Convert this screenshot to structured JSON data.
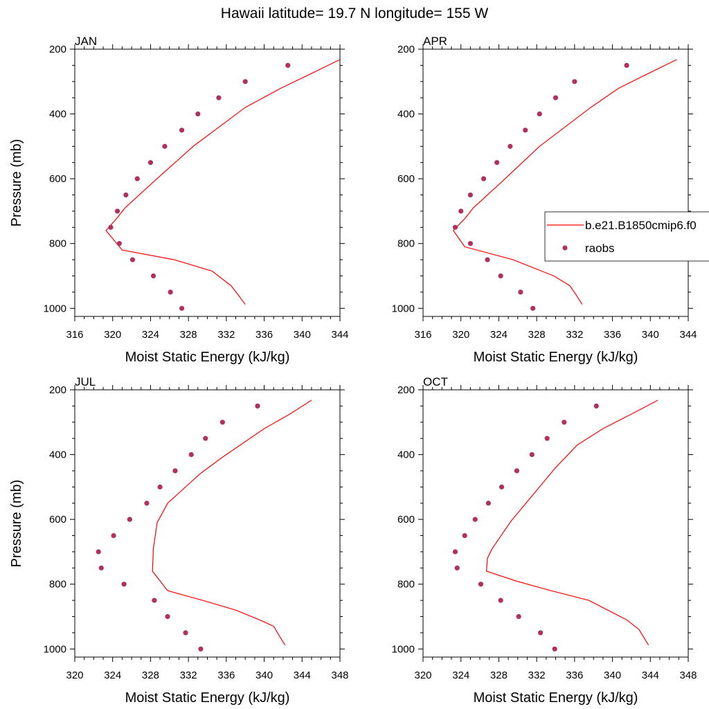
{
  "figure": {
    "title": "Hawaii  latitude= 19.7 N longitude= 155 W",
    "colors": {
      "model_line": "#ff0000",
      "raobs_marker": "#b03060",
      "axis": "#000000"
    }
  },
  "legend": {
    "entries": [
      "b.e21.B1850cmip6.f0",
      "raobs"
    ]
  },
  "chart_data": [
    {
      "type": "line+scatter",
      "panel_label": "JAN",
      "xlabel": "Moist Static Energy (kJ/kg)",
      "ylabel": "Pressure (mb)",
      "xlim": [
        316,
        344
      ],
      "ylim": [
        200,
        1025
      ],
      "y_reversed": true,
      "xticks": [
        316,
        320,
        324,
        328,
        332,
        336,
        340,
        344
      ],
      "yticks": [
        200,
        400,
        600,
        800,
        1000
      ],
      "series": [
        {
          "name": "b.e21.B1850cmip6.f0",
          "kind": "line",
          "x": [
            344.0,
            341.0,
            337.8,
            334.0,
            328.5,
            324.3,
            321.3,
            320.5,
            319.3,
            321.0,
            326.5,
            330.5,
            332.5,
            333.3,
            334.0
          ],
          "y": [
            232,
            275,
            320,
            380,
            500,
            610,
            690,
            720,
            760,
            820,
            850,
            885,
            930,
            960,
            988
          ]
        },
        {
          "name": "raobs",
          "kind": "scatter",
          "x": [
            338.5,
            334.0,
            331.2,
            329.0,
            327.3,
            325.5,
            324.0,
            322.6,
            321.4,
            320.5,
            319.8,
            320.7,
            322.1,
            324.3,
            326.1,
            327.3
          ],
          "y": [
            250,
            300,
            350,
            400,
            450,
            500,
            550,
            600,
            650,
            700,
            750,
            800,
            850,
            900,
            950,
            1000
          ]
        }
      ]
    },
    {
      "type": "line+scatter",
      "panel_label": "APR",
      "xlabel": "Moist Static Energy (kJ/kg)",
      "ylabel": "",
      "xlim": [
        316,
        344
      ],
      "ylim": [
        200,
        1025
      ],
      "y_reversed": true,
      "xticks": [
        316,
        320,
        324,
        328,
        332,
        336,
        340,
        344
      ],
      "yticks": [
        200,
        400,
        600,
        800,
        1000
      ],
      "series": [
        {
          "name": "b.e21.B1850cmip6.f0",
          "kind": "line",
          "x": [
            342.8,
            339.8,
            336.7,
            333.7,
            328.3,
            324.3,
            321.3,
            320.5,
            319.2,
            320.4,
            325.5,
            329.8,
            331.5,
            332.2,
            332.8
          ],
          "y": [
            232,
            275,
            320,
            380,
            500,
            610,
            690,
            720,
            760,
            810,
            850,
            900,
            930,
            960,
            988
          ]
        },
        {
          "name": "raobs",
          "kind": "scatter",
          "x": [
            337.5,
            332.0,
            330.0,
            328.3,
            326.8,
            325.2,
            323.8,
            322.4,
            321.0,
            320.0,
            319.4,
            321.0,
            322.8,
            324.2,
            326.3,
            327.6
          ],
          "y": [
            250,
            300,
            350,
            400,
            450,
            500,
            550,
            600,
            650,
            700,
            750,
            800,
            850,
            900,
            950,
            1000
          ]
        }
      ]
    },
    {
      "type": "line+scatter",
      "panel_label": "JUL",
      "xlabel": "Moist Static Energy (kJ/kg)",
      "ylabel": "Pressure (mb)",
      "xlim": [
        320,
        348
      ],
      "ylim": [
        200,
        1025
      ],
      "y_reversed": true,
      "xticks": [
        320,
        324,
        328,
        332,
        336,
        340,
        344,
        348
      ],
      "yticks": [
        200,
        400,
        600,
        800,
        1000
      ],
      "series": [
        {
          "name": "b.e21.B1850cmip6.f0",
          "kind": "line",
          "x": [
            345.0,
            342.7,
            340.0,
            337.5,
            335.5,
            333.2,
            329.8,
            328.7,
            328.3,
            328.2,
            329.8,
            333.5,
            337.0,
            339.5,
            341.0,
            341.6,
            342.2
          ],
          "y": [
            232,
            275,
            320,
            370,
            410,
            460,
            550,
            610,
            690,
            760,
            820,
            850,
            880,
            910,
            930,
            960,
            988
          ]
        },
        {
          "name": "raobs",
          "kind": "scatter",
          "x": [
            339.3,
            335.6,
            333.8,
            332.3,
            330.6,
            329.0,
            327.6,
            325.8,
            324.1,
            322.5,
            322.8,
            325.2,
            328.4,
            329.8,
            331.7,
            333.3
          ],
          "y": [
            250,
            300,
            350,
            400,
            450,
            500,
            550,
            600,
            650,
            700,
            750,
            800,
            850,
            900,
            950,
            1000
          ]
        }
      ]
    },
    {
      "type": "line+scatter",
      "panel_label": "OCT",
      "xlabel": "Moist Static Energy (kJ/kg)",
      "ylabel": "",
      "xlim": [
        320,
        348
      ],
      "ylim": [
        200,
        1025
      ],
      "y_reversed": true,
      "xticks": [
        320,
        324,
        328,
        332,
        336,
        340,
        344,
        348
      ],
      "yticks": [
        200,
        400,
        600,
        800,
        1000
      ],
      "series": [
        {
          "name": "b.e21.B1850cmip6.f0",
          "kind": "line",
          "x": [
            344.8,
            342.0,
            339.0,
            336.3,
            334.0,
            329.3,
            327.3,
            326.8,
            326.7,
            329.8,
            333.5,
            337.5,
            341.5,
            342.8,
            343.8
          ],
          "y": [
            232,
            275,
            320,
            370,
            440,
            605,
            690,
            720,
            760,
            790,
            820,
            850,
            910,
            940,
            988
          ]
        },
        {
          "name": "raobs",
          "kind": "scatter",
          "x": [
            338.3,
            334.9,
            333.1,
            331.5,
            329.9,
            328.3,
            326.9,
            325.5,
            324.4,
            323.4,
            323.6,
            326.1,
            328.2,
            330.1,
            332.4,
            333.9
          ],
          "y": [
            250,
            300,
            350,
            400,
            450,
            500,
            550,
            600,
            650,
            700,
            750,
            800,
            850,
            900,
            950,
            1000
          ]
        }
      ]
    }
  ]
}
